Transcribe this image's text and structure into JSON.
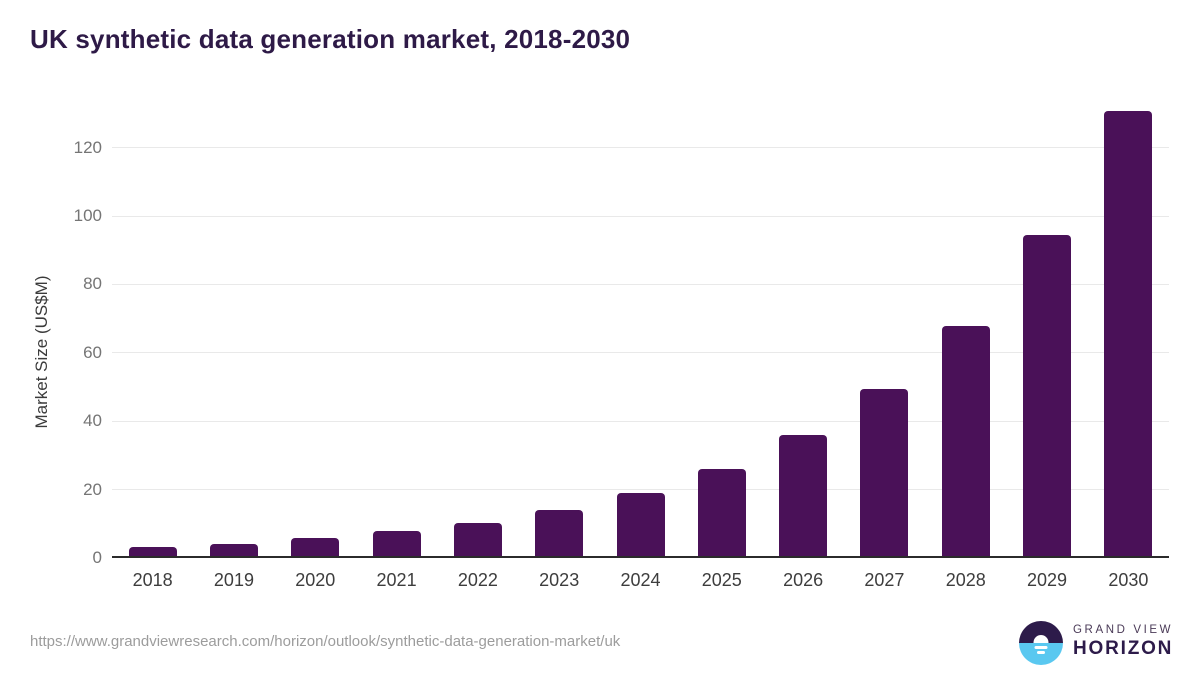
{
  "title": "UK synthetic data generation market, 2018-2030",
  "footer": {
    "source_url": "https://www.grandviewresearch.com/horizon/outlook/synthetic-data-generation-market/uk"
  },
  "logo": {
    "line1": "GRAND VIEW",
    "line2": "HORIZON"
  },
  "colors": {
    "bar": "#4a1158",
    "title_text": "#2e1a47",
    "grid": "#e9e9e9",
    "axis_line": "#2b2b2b",
    "y_tick_text": "#757575",
    "x_tick_text": "#3d3d3d",
    "url_text": "#9c9c9c",
    "logo_dark": "#2d1b4a",
    "logo_blue": "#5ac8f0"
  },
  "chart_data": {
    "type": "bar",
    "title": "UK synthetic data generation market, 2018-2030",
    "categories": [
      "2018",
      "2019",
      "2020",
      "2021",
      "2022",
      "2023",
      "2024",
      "2025",
      "2026",
      "2027",
      "2028",
      "2029",
      "2030"
    ],
    "values": [
      3.1,
      4.0,
      5.8,
      7.9,
      10.1,
      14.0,
      19.1,
      25.9,
      35.9,
      49.4,
      67.9,
      94.4,
      130.6
    ],
    "xlabel": "",
    "ylabel": "Market Size (US$M)",
    "yticks": [
      0,
      20,
      40,
      60,
      80,
      100,
      120
    ],
    "ylim": [
      0,
      131
    ],
    "grid": true,
    "legend": "none",
    "bar_color": "#4a1158"
  }
}
